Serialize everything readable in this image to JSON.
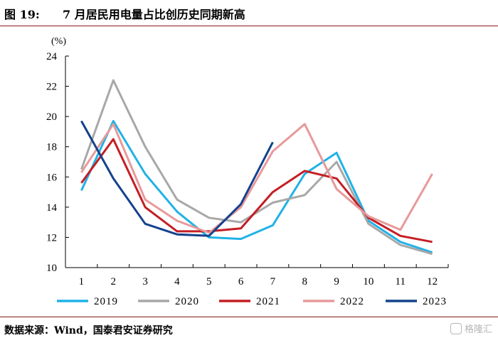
{
  "header": {
    "figure_label": "图 19:",
    "title": "7 月居民用电量占比创历史同期新高"
  },
  "footer": {
    "source": "数据来源：Wind，国泰君安证券研究",
    "watermark": "格隆汇"
  },
  "chart_data": {
    "type": "line",
    "title": "7 月居民用电量占比创历史同期新高",
    "unit_label": "(%)",
    "xlabel": "",
    "ylabel": "",
    "categories": [
      "1",
      "2",
      "3",
      "4",
      "5",
      "6",
      "7",
      "8",
      "9",
      "10",
      "11",
      "12"
    ],
    "ylim": [
      10,
      24
    ],
    "yticks": [
      10,
      12,
      14,
      16,
      18,
      20,
      22,
      24
    ],
    "grid": false,
    "legend_position": "bottom",
    "series": [
      {
        "name": "2019",
        "color": "#20b2e6",
        "values": [
          15.1,
          19.7,
          16.2,
          13.7,
          12.0,
          11.9,
          12.8,
          16.2,
          17.6,
          13.1,
          11.7,
          11.0
        ]
      },
      {
        "name": "2020",
        "color": "#a8a8a8",
        "values": [
          16.5,
          22.4,
          18.0,
          14.5,
          13.3,
          13.0,
          14.3,
          14.8,
          17.0,
          12.9,
          11.5,
          10.9
        ]
      },
      {
        "name": "2021",
        "color": "#c41e24",
        "values": [
          15.6,
          18.5,
          14.0,
          12.4,
          12.4,
          12.6,
          15.0,
          16.4,
          15.9,
          13.3,
          12.1,
          11.7
        ]
      },
      {
        "name": "2022",
        "color": "#e8999a",
        "values": [
          16.3,
          19.5,
          14.5,
          13.1,
          12.3,
          14.0,
          17.7,
          19.5,
          15.2,
          13.4,
          12.5,
          16.2
        ]
      },
      {
        "name": "2023",
        "color": "#14428c",
        "values": [
          19.7,
          15.9,
          12.9,
          12.2,
          12.1,
          14.2,
          18.3,
          null,
          null,
          null,
          null,
          null
        ]
      }
    ]
  }
}
